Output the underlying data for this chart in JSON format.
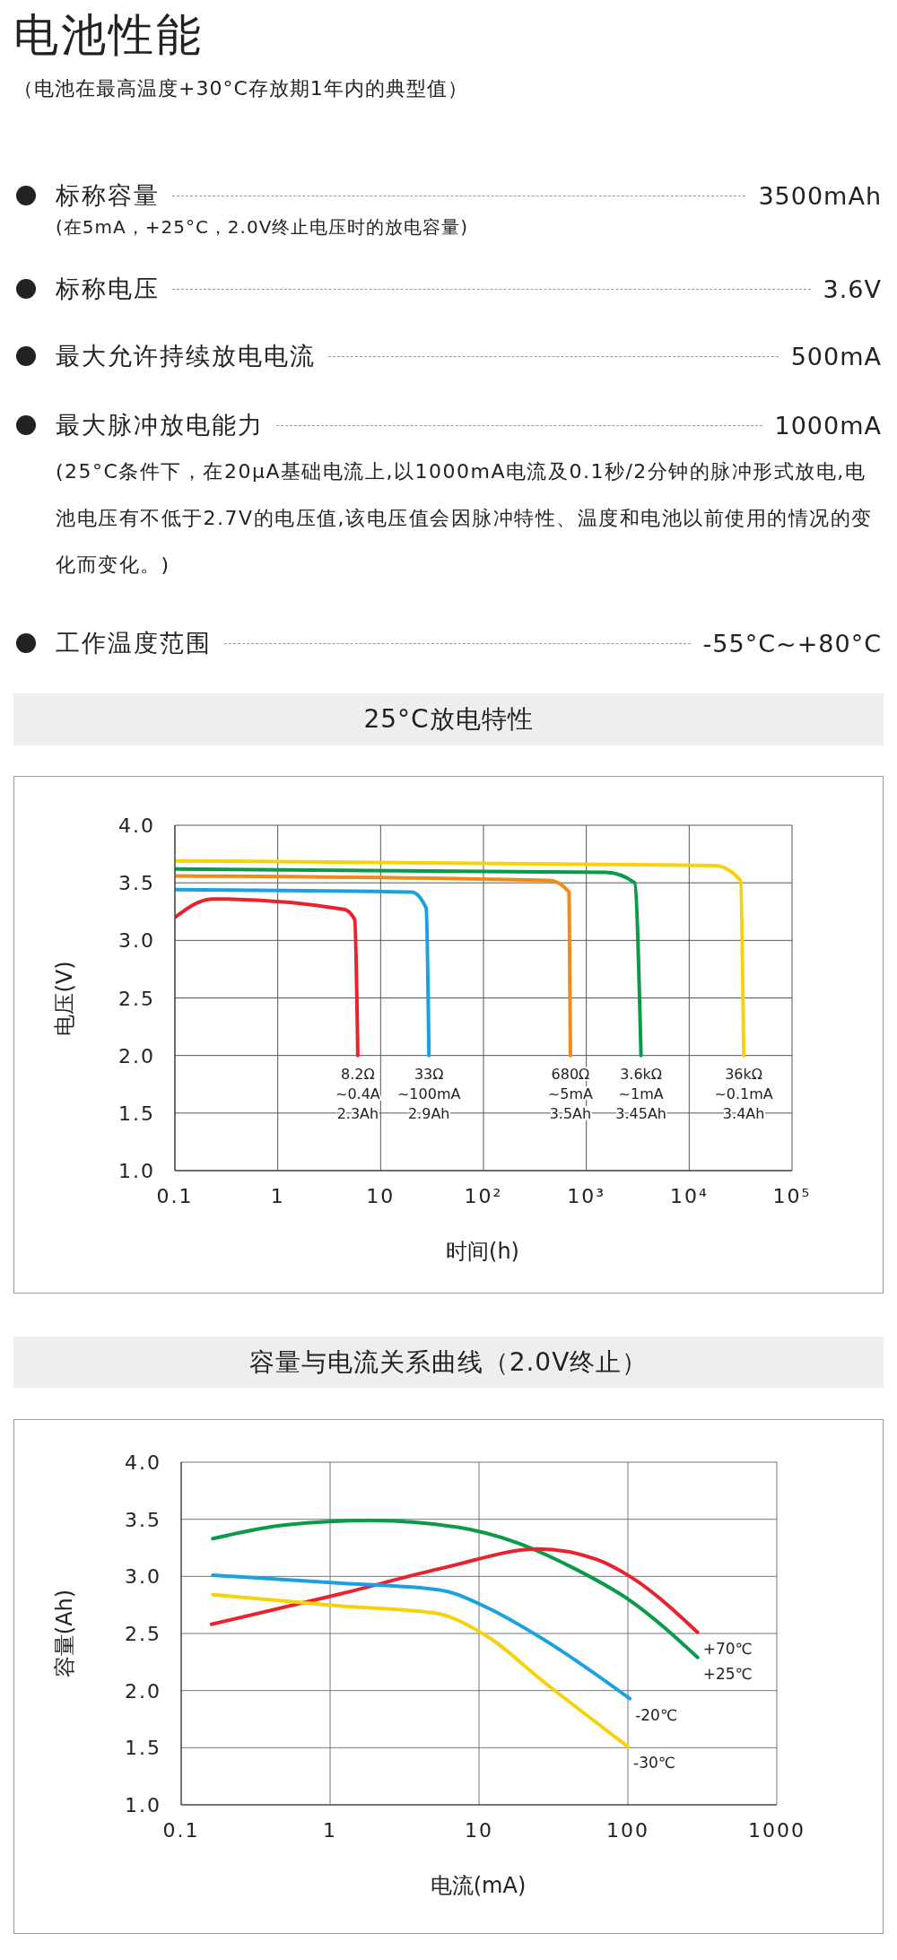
{
  "chart_data": [
    {
      "type": "other",
      "title": "电池性能",
      "subtitle": "（电池在最高温度+30°C存放期1年内的典型值）",
      "annotations": [
        "标称容量",
        "3500mAh",
        "(在5mA，+25°C，2.0V终止电压时的放电容量)",
        "标称电压",
        "3.6V",
        "最大允许持续放电电流",
        "500mA",
        "最大脉冲放电能力",
        "1000mA",
        "(25°C条件下，在20μA基础电流上,以1000mA电流及0.1秒/2分钟的脉冲形式放电,电池电压有不低于2.7V的电压值,该电压值会因脉冲特性、温度和电池以前使用的情况的变化而变化。)",
        "工作温度范围",
        "-55°C~+80°C"
      ]
    },
    {
      "type": "line",
      "title": "25°C放电特性",
      "xlabel": "时间(h)",
      "ylabel": "电压(V)",
      "log": "x",
      "grid": true,
      "xlim": [
        0.1,
        100000
      ],
      "xticks": [
        0.1,
        1,
        10,
        {
          "value": 100,
          "label": "10²"
        },
        {
          "value": 1000,
          "label": "10³"
        },
        {
          "value": 10000,
          "label": "10⁴"
        },
        {
          "value": 100000,
          "label": "10⁵"
        }
      ],
      "ylim": [
        1,
        4
      ],
      "yticks": [
        {
          "value": 1,
          "label": "1.0"
        },
        {
          "value": 1.5,
          "label": "1.5"
        },
        {
          "value": 2,
          "label": "2.0"
        },
        {
          "value": 2.5,
          "label": "2.5"
        },
        {
          "value": 3,
          "label": "3.0"
        },
        {
          "value": 3.5,
          "label": "3.5"
        },
        {
          "value": 4,
          "label": "4.0"
        }
      ],
      "series": [
        {
          "name": "8.2Ω\n~0.4A\n2.3Ah",
          "color": "#e8232b",
          "x": [
            0.1,
            0.23,
            4.4,
            5.6,
            6.0
          ],
          "values": [
            3.2,
            3.36,
            3.27,
            3.18,
            2.0
          ]
        },
        {
          "name": "33Ω\n~100mA\n2.9Ah",
          "color": "#1ba1e2",
          "x": [
            0.1,
            20,
            27.7,
            29.5
          ],
          "values": [
            3.44,
            3.42,
            3.28,
            2.0
          ]
        },
        {
          "name": "680Ω\n~5mA\n3.5Ah",
          "color": "#f08a1d",
          "x": [
            0.1,
            436,
            680,
            700
          ],
          "values": [
            3.56,
            3.52,
            3.42,
            2.0
          ]
        },
        {
          "name": "3.6kΩ\n~1mA\n3.45Ah",
          "color": "#0a9a4a",
          "x": [
            0.1,
            1550,
            2950,
            3400
          ],
          "values": [
            3.62,
            3.59,
            3.5,
            2.0
          ]
        },
        {
          "name": "36kΩ\n~0.1mA\n3.4Ah",
          "color": "#f5d10e",
          "x": [
            0.1,
            17800,
            31600,
            33900
          ],
          "values": [
            3.69,
            3.65,
            3.52,
            2.0
          ]
        }
      ]
    },
    {
      "type": "line",
      "title": "容量与电流关系曲线（2.0V终止）",
      "xlabel": "电流(mA)",
      "ylabel": "容量(Ah)",
      "log": "x",
      "grid": true,
      "xlim": [
        0.1,
        1000
      ],
      "xticks": [
        0.1,
        1,
        10,
        100,
        1000
      ],
      "ylim": [
        1,
        4
      ],
      "yticks": [
        {
          "value": 1,
          "label": "1.0"
        },
        {
          "value": 1.5,
          "label": "1.5"
        },
        {
          "value": 2,
          "label": "2.0"
        },
        {
          "value": 2.5,
          "label": "2.5"
        },
        {
          "value": 3,
          "label": "3.0"
        },
        {
          "value": 3.5,
          "label": "3.5"
        },
        {
          "value": 4,
          "label": "4.0"
        }
      ],
      "series": [
        {
          "name": "+25℃",
          "color": "#0a9a4a",
          "x": [
            0.163,
            0.5,
            1.9,
            7.2,
            17.5,
            42,
            103,
            294
          ],
          "values": [
            3.33,
            3.45,
            3.49,
            3.43,
            3.3,
            3.08,
            2.79,
            2.29
          ]
        },
        {
          "name": "+70℃",
          "color": "#e8232b",
          "x": [
            0.16,
            1.2,
            6,
            25,
            61,
            103,
            294
          ],
          "values": [
            2.58,
            2.85,
            3.08,
            3.24,
            3.15,
            3.0,
            2.51
          ]
        },
        {
          "name": "-20℃",
          "color": "#1ba1e2",
          "x": [
            0.163,
            1.2,
            5.5,
            11.2,
            27,
            103
          ],
          "values": [
            3.01,
            2.94,
            2.88,
            2.73,
            2.45,
            1.93
          ]
        },
        {
          "name": "-30℃",
          "color": "#f5d10e",
          "x": [
            0.163,
            1.2,
            5,
            11.2,
            27,
            100
          ],
          "values": [
            2.84,
            2.74,
            2.68,
            2.48,
            2.08,
            1.51
          ]
        }
      ]
    }
  ]
}
